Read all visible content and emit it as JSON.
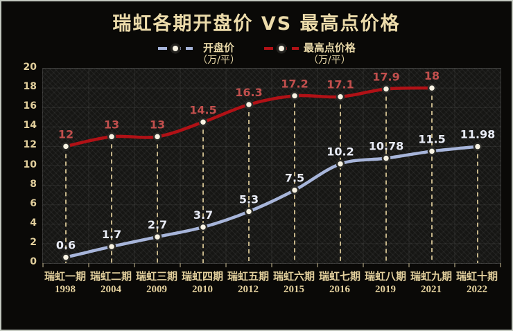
{
  "title": "瑞虹各期开盘价 VS 最高点价格",
  "legend": {
    "items": [
      {
        "label": "开盘价",
        "unit": "（万/平）",
        "color": "#a7b5da"
      },
      {
        "label": "最高点价格",
        "unit": "（万/平）",
        "color": "#b11116"
      }
    ]
  },
  "colors": {
    "background": "#0a0907",
    "frame_border": "#c3c8bf",
    "title_text": "#ecdbaa",
    "axis_text": "#e3d09d",
    "gridline": "rgba(255,255,255,0.08)",
    "drop_line": "#c5b589",
    "marker_fill": "#f8f3e3",
    "marker_ring": "#2b2b28",
    "open_line": "#a7b5da",
    "open_label": "#e9ecf6",
    "peak_line": "#b11116",
    "peak_label": "#c24f4d"
  },
  "chart_data": {
    "type": "line",
    "title": "瑞虹各期开盘价 VS 最高点价格",
    "categories": [
      "瑞虹一期",
      "瑞虹二期",
      "瑞虹三期",
      "瑞虹四期",
      "瑞虹五期",
      "瑞虹六期",
      "瑞虹七期",
      "瑞虹八期",
      "瑞虹九期",
      "瑞虹十期"
    ],
    "years": [
      "1998",
      "2004",
      "2009",
      "2010",
      "2012",
      "2015",
      "2016",
      "2019",
      "2021",
      "2022"
    ],
    "series": [
      {
        "name": "开盘价（万/平）",
        "color": "#a7b5da",
        "label_color": "#e9ecf6",
        "values": [
          0.6,
          1.7,
          2.7,
          3.7,
          5.3,
          7.5,
          10.2,
          10.78,
          11.5,
          11.98
        ],
        "labels": [
          "0.6",
          "1.7",
          "2.7",
          "3.7",
          "5.3",
          "7.5",
          "10.2",
          "10.78",
          "11.5",
          "11.98"
        ]
      },
      {
        "name": "最高点价格（万/平）",
        "color": "#b11116",
        "label_color": "#c24f4d",
        "values": [
          12,
          13,
          13,
          14.5,
          16.3,
          17.2,
          17.1,
          17.9,
          18,
          null
        ],
        "labels": [
          "12",
          "13",
          "13",
          "14.5",
          "16.3",
          "17.2",
          "17.1",
          "17.9",
          "18",
          ""
        ]
      }
    ],
    "xlabel": "",
    "ylabel": "",
    "ylim": [
      0,
      20
    ],
    "ytick_step": 2,
    "grid": true,
    "legend_position": "top",
    "line_smoothing": true,
    "drop_lines": "dashed vertical from highest point of each category to x-axis"
  }
}
